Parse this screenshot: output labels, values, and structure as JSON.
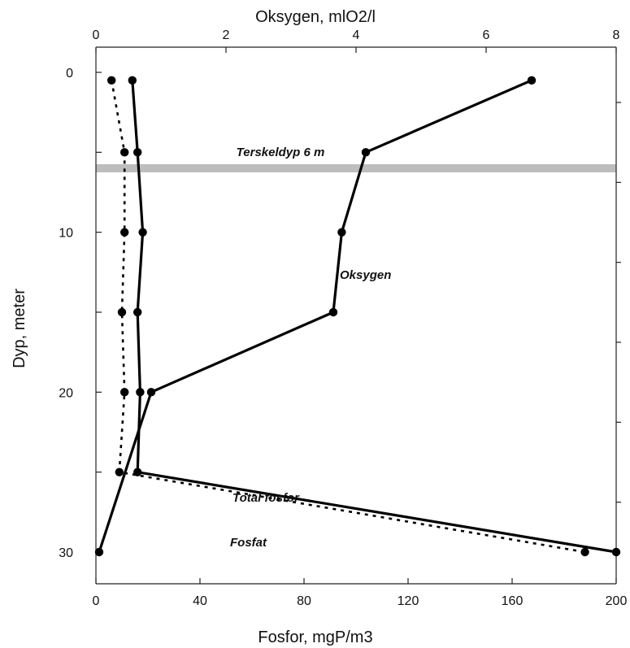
{
  "chart_data": {
    "type": "line",
    "top_axis": {
      "label": "Oksygen, mlO2/l",
      "range": [
        0,
        8
      ],
      "ticks": [
        0,
        2,
        4,
        6,
        8
      ]
    },
    "bottom_axis": {
      "label": "Fosfor, mgP/m3",
      "range": [
        0,
        200
      ],
      "ticks": [
        0,
        40,
        80,
        120,
        160,
        200
      ]
    },
    "y_axis": {
      "label": "Dyp, meter",
      "range": [
        0,
        30
      ],
      "inverted": true,
      "ticks": [
        0,
        10,
        20,
        30
      ]
    },
    "band": {
      "label": "Terskeldyp 6 m",
      "depth": 6,
      "color": "#bdbdbd"
    },
    "series": [
      {
        "name": "Oksygen",
        "axis": "top",
        "style": "solid",
        "points": [
          {
            "x": 6.7,
            "y": 0.5
          },
          {
            "x": 4.15,
            "y": 5
          },
          {
            "x": 3.78,
            "y": 10
          },
          {
            "x": 3.65,
            "y": 15
          },
          {
            "x": 0.85,
            "y": 20
          },
          {
            "x": 0.05,
            "y": 30
          }
        ]
      },
      {
        "name": "Total fosfor",
        "axis": "bottom",
        "style": "solid",
        "points": [
          {
            "x": 14,
            "y": 0.5
          },
          {
            "x": 16,
            "y": 5
          },
          {
            "x": 18,
            "y": 10
          },
          {
            "x": 16,
            "y": 15
          },
          {
            "x": 17,
            "y": 20
          },
          {
            "x": 16,
            "y": 25
          },
          {
            "x": 200,
            "y": 30
          }
        ]
      },
      {
        "name": "Fosfat",
        "axis": "bottom",
        "style": "dotted",
        "points": [
          {
            "x": 6,
            "y": 0.5
          },
          {
            "x": 11,
            "y": 5
          },
          {
            "x": 11,
            "y": 10
          },
          {
            "x": 10,
            "y": 15
          },
          {
            "x": 11,
            "y": 20
          },
          {
            "x": 9,
            "y": 25
          },
          {
            "x": 188,
            "y": 30
          }
        ]
      }
    ],
    "grid": false
  }
}
